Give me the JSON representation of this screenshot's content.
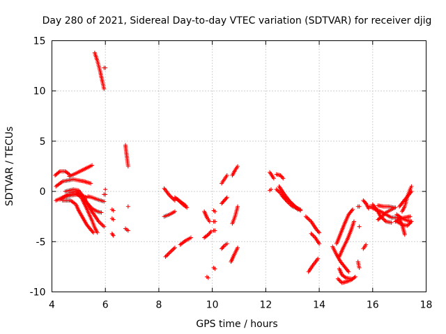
{
  "chart_data": {
    "type": "scatter",
    "title": "Day 280 of 2021, Sidereal Day-to-day VTEC variation (SDTVAR) for receiver djig",
    "xlabel": "GPS time / hours",
    "ylabel": "SDTVAR / TECUs",
    "xlim": [
      4,
      18
    ],
    "ylim": [
      -10,
      15
    ],
    "xticks": [
      4,
      6,
      8,
      10,
      12,
      14,
      16,
      18
    ],
    "yticks": [
      -10,
      -5,
      0,
      5,
      10,
      15
    ],
    "xtick_labels": [
      "4",
      "6",
      "8",
      "10",
      "12",
      "14",
      "16",
      "18"
    ],
    "ytick_labels": [
      "-10",
      "-5",
      "0",
      "5",
      "10",
      "15"
    ],
    "grid": true,
    "marker": "+",
    "color": "#ff0000",
    "tracks": [
      {
        "x": [
          4.12,
          4.3,
          4.5,
          4.65
        ],
        "y": [
          1.6,
          2.0,
          2.0,
          1.7
        ]
      },
      {
        "x": [
          4.65,
          4.9,
          5.2,
          5.5
        ],
        "y": [
          1.5,
          1.8,
          2.2,
          2.6
        ]
      },
      {
        "x": [
          4.15,
          4.4,
          4.8,
          5.2,
          5.45
        ],
        "y": [
          0.5,
          1.0,
          1.2,
          1.0,
          0.8
        ]
      },
      {
        "x": [
          4.15,
          4.4,
          4.7,
          5.0,
          5.3
        ],
        "y": [
          -0.9,
          -0.6,
          -0.4,
          -0.3,
          -0.6
        ]
      },
      {
        "x": [
          4.3,
          4.6,
          4.9,
          5.1,
          5.3,
          5.5,
          5.6,
          5.7
        ],
        "y": [
          -0.8,
          -0.3,
          -0.2,
          -0.6,
          -1.7,
          -2.9,
          -3.6,
          -4.1
        ]
      },
      {
        "x": [
          4.5,
          4.8,
          5.0,
          5.2,
          5.4,
          5.6,
          5.75,
          5.95
        ],
        "y": [
          0.0,
          0.2,
          0.1,
          -0.6,
          -1.6,
          -2.4,
          -3.0,
          -3.5
        ]
      },
      {
        "x": [
          4.7,
          4.9,
          5.1,
          5.3,
          5.5,
          5.7,
          5.85
        ],
        "y": [
          -0.1,
          0.0,
          -0.4,
          -1.1,
          -1.7,
          -2.0,
          -2.1
        ]
      },
      {
        "x": [
          4.4,
          4.7,
          4.9,
          5.0,
          5.15,
          5.3,
          5.45,
          5.55
        ],
        "y": [
          -0.9,
          -0.9,
          -1.3,
          -1.9,
          -2.6,
          -3.3,
          -3.8,
          -4.1
        ]
      },
      {
        "x": [
          5.35,
          5.5,
          5.7,
          5.95
        ],
        "y": [
          -0.5,
          -0.6,
          -0.8,
          -1.0
        ]
      },
      {
        "x": [
          5.6,
          5.7,
          5.8,
          5.9,
          5.95
        ],
        "y": [
          13.8,
          13.0,
          12.0,
          10.8,
          10.2
        ]
      },
      {
        "x": [
          5.95,
          6.0
        ],
        "y": [
          12.3,
          12.3
        ]
      },
      {
        "x": [
          6.0
        ],
        "y": [
          0.2
        ]
      },
      {
        "x": [
          5.95,
          6.0
        ],
        "y": [
          -0.3,
          -0.3
        ]
      },
      {
        "x": [
          6.25,
          6.3
        ],
        "y": [
          -1.8,
          -1.9
        ]
      },
      {
        "x": [
          6.25,
          6.3
        ],
        "y": [
          -2.7,
          -2.8
        ]
      },
      {
        "x": [
          6.25,
          6.3
        ],
        "y": [
          -4.2,
          -4.4
        ]
      },
      {
        "x": [
          6.75,
          6.8,
          6.85
        ],
        "y": [
          4.6,
          3.5,
          2.5
        ]
      },
      {
        "x": [
          6.85
        ],
        "y": [
          -1.5
        ]
      },
      {
        "x": [
          6.75,
          6.85
        ],
        "y": [
          -3.7,
          -3.9
        ]
      },
      {
        "x": [
          8.2,
          8.4,
          8.6
        ],
        "y": [
          0.3,
          -0.4,
          -0.9
        ]
      },
      {
        "x": [
          8.6,
          8.8,
          9.0
        ],
        "y": [
          -0.6,
          -1.0,
          -1.4
        ]
      },
      {
        "x": [
          8.2,
          8.4,
          8.6
        ],
        "y": [
          -2.5,
          -2.3,
          -2.0
        ]
      },
      {
        "x": [
          8.7,
          8.9,
          9.05
        ],
        "y": [
          -0.8,
          -1.3,
          -1.6
        ]
      },
      {
        "x": [
          8.25,
          8.4,
          8.6
        ],
        "y": [
          -6.5,
          -6.1,
          -5.6
        ]
      },
      {
        "x": [
          8.8,
          9.0,
          9.2
        ],
        "y": [
          -5.3,
          -4.9,
          -4.6
        ]
      },
      {
        "x": [
          9.7,
          9.8,
          9.9
        ],
        "y": [
          -2.0,
          -2.6,
          -3.0
        ]
      },
      {
        "x": [
          9.7,
          9.85,
          9.95
        ],
        "y": [
          -4.6,
          -4.3,
          -4.0
        ]
      },
      {
        "x": [
          9.8,
          9.85
        ],
        "y": [
          -8.5,
          -8.6
        ]
      },
      {
        "x": [
          10.05,
          10.1
        ],
        "y": [
          -1.9,
          -2.0
        ]
      },
      {
        "x": [
          10.05,
          10.1
        ],
        "y": [
          -3.0,
          -3.0
        ]
      },
      {
        "x": [
          10.05,
          10.1
        ],
        "y": [
          -3.9,
          -3.9
        ]
      },
      {
        "x": [
          10.05,
          10.1
        ],
        "y": [
          -7.6,
          -7.7
        ]
      },
      {
        "x": [
          10.35,
          10.45,
          10.55
        ],
        "y": [
          0.8,
          1.2,
          1.6
        ]
      },
      {
        "x": [
          10.35,
          10.45,
          10.55
        ],
        "y": [
          -1.2,
          -0.9,
          -0.6
        ]
      },
      {
        "x": [
          10.35,
          10.45,
          10.55
        ],
        "y": [
          -5.7,
          -5.4,
          -5.2
        ]
      },
      {
        "x": [
          10.75,
          10.85,
          10.95
        ],
        "y": [
          1.6,
          2.1,
          2.5
        ]
      },
      {
        "x": [
          10.75,
          10.85,
          10.95
        ],
        "y": [
          -3.2,
          -2.5,
          -1.5
        ]
      },
      {
        "x": [
          10.7,
          10.8,
          10.95
        ],
        "y": [
          -7.0,
          -6.4,
          -5.6
        ]
      },
      {
        "x": [
          12.15,
          12.3
        ],
        "y": [
          1.9,
          1.3
        ]
      },
      {
        "x": [
          12.15,
          12.2
        ],
        "y": [
          0.1,
          0.2
        ]
      },
      {
        "x": [
          12.4,
          12.55,
          12.65
        ],
        "y": [
          1.7,
          1.6,
          1.3
        ]
      },
      {
        "x": [
          12.4,
          12.6,
          12.8,
          13.0,
          13.2
        ],
        "y": [
          0.2,
          -0.3,
          -0.8,
          -1.3,
          -1.8
        ]
      },
      {
        "x": [
          12.5,
          12.7,
          12.9,
          13.1,
          13.3
        ],
        "y": [
          0.5,
          -0.3,
          -1.0,
          -1.5,
          -1.9
        ]
      },
      {
        "x": [
          12.6,
          12.8,
          13.0,
          13.2,
          13.3
        ],
        "y": [
          -0.4,
          -1.0,
          -1.5,
          -1.7,
          -1.8
        ]
      },
      {
        "x": [
          13.5,
          13.7,
          13.9,
          14.0
        ],
        "y": [
          -2.5,
          -3.0,
          -3.8,
          -4.1
        ]
      },
      {
        "x": [
          13.7,
          13.85,
          14.0
        ],
        "y": [
          -4.2,
          -4.6,
          -5.2
        ]
      },
      {
        "x": [
          13.6,
          13.75,
          13.95
        ],
        "y": [
          -8.0,
          -7.4,
          -6.7
        ]
      },
      {
        "x": [
          14.5,
          14.65,
          14.8,
          14.95,
          15.1
        ],
        "y": [
          -5.5,
          -6.3,
          -7.0,
          -7.5,
          -8.0
        ]
      },
      {
        "x": [
          14.75,
          14.85,
          15.0,
          15.2
        ],
        "y": [
          -7.7,
          -8.3,
          -8.6,
          -8.7
        ]
      },
      {
        "x": [
          14.7,
          14.85,
          15.0,
          15.2,
          15.35
        ],
        "y": [
          -8.7,
          -9.1,
          -9.0,
          -8.8,
          -8.5
        ]
      },
      {
        "x": [
          14.75,
          14.9,
          15.05,
          15.2,
          15.3
        ],
        "y": [
          -6.5,
          -5.6,
          -4.8,
          -3.8,
          -3.0
        ]
      },
      {
        "x": [
          14.65,
          14.8,
          14.95,
          15.1,
          15.25
        ],
        "y": [
          -5.2,
          -4.2,
          -3.2,
          -2.3,
          -1.8
        ]
      },
      {
        "x": [
          15.5
        ],
        "y": [
          -3.5
        ]
      },
      {
        "x": [
          15.45,
          15.5
        ],
        "y": [
          -1.5,
          -1.5
        ]
      },
      {
        "x": [
          15.45,
          15.5
        ],
        "y": [
          -7.0,
          -7.6
        ]
      },
      {
        "x": [
          15.65,
          15.75,
          15.85
        ],
        "y": [
          -0.9,
          -1.2,
          -1.7
        ]
      },
      {
        "x": [
          15.65,
          15.75
        ],
        "y": [
          -5.7,
          -5.3
        ]
      },
      {
        "x": [
          15.9,
          16.1,
          16.3,
          16.5,
          16.7,
          16.9
        ],
        "y": [
          -1.5,
          -1.8,
          -2.0,
          -2.3,
          -2.6,
          -2.6
        ]
      },
      {
        "x": [
          16.0,
          16.15,
          16.3,
          16.5,
          16.7
        ],
        "y": [
          -1.3,
          -1.8,
          -2.5,
          -3.0,
          -3.1
        ]
      },
      {
        "x": [
          16.2,
          16.4,
          16.6,
          16.8
        ],
        "y": [
          -1.4,
          -1.5,
          -1.5,
          -1.6
        ]
      },
      {
        "x": [
          16.2,
          16.35,
          16.5,
          16.7,
          16.85
        ],
        "y": [
          -2.8,
          -2.5,
          -2.1,
          -1.8,
          -1.6
        ]
      },
      {
        "x": [
          16.9,
          17.1,
          17.3,
          17.45
        ],
        "y": [
          -2.3,
          -2.7,
          -2.9,
          -3.0
        ]
      },
      {
        "x": [
          16.9,
          17.1,
          17.3,
          17.45
        ],
        "y": [
          -3.0,
          -3.3,
          -3.4,
          -3.0
        ]
      },
      {
        "x": [
          17.0,
          17.1,
          17.15,
          17.2
        ],
        "y": [
          -2.8,
          -3.3,
          -3.8,
          -4.3
        ]
      },
      {
        "x": [
          17.0,
          17.15,
          17.3,
          17.45
        ],
        "y": [
          -1.5,
          -1.0,
          -0.5,
          0.0
        ]
      },
      {
        "x": [
          17.1,
          17.2,
          17.3,
          17.4,
          17.45
        ],
        "y": [
          -2.0,
          -1.5,
          -0.5,
          0.2,
          0.5
        ]
      },
      {
        "x": [
          16.85,
          17.0,
          17.2,
          17.4
        ],
        "y": [
          -3.0,
          -2.7,
          -2.6,
          -2.5
        ]
      }
    ]
  }
}
